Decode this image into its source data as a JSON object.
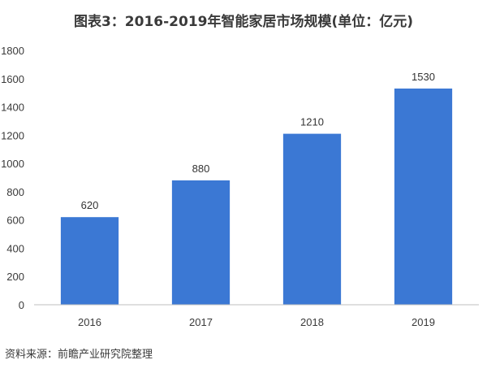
{
  "title": "图表3：2016-2019年智能家居市场规模(单位：亿元)",
  "source": "资料来源：前瞻产业研究院整理",
  "colors": {
    "bar": "#3b78d4",
    "axis": "#bfbfbf",
    "text": "#3a3a3a"
  },
  "chart_data": {
    "type": "bar",
    "title": "图表3：2016-2019年智能家居市场规模(单位：亿元)",
    "xlabel": "",
    "ylabel": "",
    "categories": [
      "2016",
      "2017",
      "2018",
      "2019"
    ],
    "values": [
      620,
      880,
      1210,
      1530
    ],
    "data_labels": [
      "620",
      "880",
      "1210",
      "1530"
    ],
    "ylim": [
      0,
      1800
    ],
    "yticks": [
      0,
      200,
      400,
      600,
      800,
      1000,
      1200,
      1400,
      1600,
      1800
    ],
    "grid": false,
    "legend": "none"
  }
}
